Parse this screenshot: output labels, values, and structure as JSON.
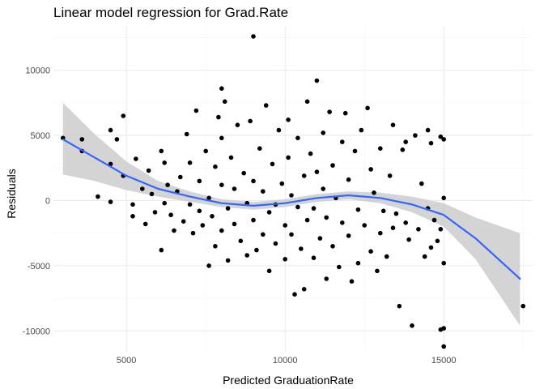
{
  "chart_data": {
    "type": "scatter",
    "title": "Linear model regression for Grad.Rate",
    "xlabel": "Predicted GraduationRate",
    "ylabel": "Residuals",
    "xlim": [
      2700,
      17800
    ],
    "ylim": [
      -11600,
      13400
    ],
    "xticks": [
      5000,
      10000,
      15000
    ],
    "yticks": [
      -10000,
      -5000,
      0,
      5000,
      10000
    ],
    "grid": true,
    "colors": {
      "points": "#000000",
      "smooth_line": "#3366ff",
      "ribbon": "#cccccc",
      "grid_major": "#ebebeb",
      "grid_minor": "#f3f3f3"
    },
    "smooth": {
      "method": "loess",
      "x": [
        3000,
        4000,
        5000,
        6000,
        7000,
        8000,
        9000,
        10000,
        11000,
        12000,
        13000,
        14000,
        15000,
        16000,
        17400
      ],
      "y": [
        4700,
        3300,
        1900,
        900,
        300,
        -200,
        -400,
        -200,
        200,
        400,
        200,
        -300,
        -1100,
        -2900,
        -6000
      ],
      "lower": [
        2000,
        1500,
        800,
        300,
        -100,
        -500,
        -700,
        -500,
        -100,
        100,
        -200,
        -900,
        -2000,
        -4500,
        -9600
      ],
      "upper": [
        7500,
        5100,
        3000,
        1500,
        700,
        100,
        -100,
        100,
        500,
        700,
        600,
        300,
        -200,
        -1300,
        -2500
      ]
    },
    "points": [
      [
        3000,
        4800
      ],
      [
        3600,
        4700
      ],
      [
        3600,
        3800
      ],
      [
        4100,
        300
      ],
      [
        4500,
        5400
      ],
      [
        4500,
        2800
      ],
      [
        4500,
        -100
      ],
      [
        4700,
        4700
      ],
      [
        4900,
        6500
      ],
      [
        4900,
        1900
      ],
      [
        5200,
        -300
      ],
      [
        5200,
        -1200
      ],
      [
        5300,
        3200
      ],
      [
        5500,
        900
      ],
      [
        5600,
        -1800
      ],
      [
        5700,
        2300
      ],
      [
        5800,
        500
      ],
      [
        5900,
        -900
      ],
      [
        6100,
        3800
      ],
      [
        6100,
        -3800
      ],
      [
        6200,
        2900
      ],
      [
        6200,
        -200
      ],
      [
        6300,
        1200
      ],
      [
        6400,
        -1100
      ],
      [
        6500,
        -2300
      ],
      [
        6600,
        700
      ],
      [
        6700,
        1800
      ],
      [
        6800,
        -1600
      ],
      [
        6900,
        5100
      ],
      [
        7000,
        2900
      ],
      [
        7000,
        -300
      ],
      [
        7100,
        -2500
      ],
      [
        7200,
        6900
      ],
      [
        7300,
        1500
      ],
      [
        7300,
        -800
      ],
      [
        7400,
        -1900
      ],
      [
        7500,
        3800
      ],
      [
        7600,
        200
      ],
      [
        7600,
        -5000
      ],
      [
        7700,
        -1200
      ],
      [
        7800,
        2600
      ],
      [
        7800,
        -3500
      ],
      [
        7900,
        6400
      ],
      [
        8000,
        8600
      ],
      [
        8000,
        4800
      ],
      [
        8000,
        1200
      ],
      [
        8000,
        -2300
      ],
      [
        8100,
        7600
      ],
      [
        8200,
        -600
      ],
      [
        8200,
        -4600
      ],
      [
        8300,
        3300
      ],
      [
        8400,
        900
      ],
      [
        8400,
        -1800
      ],
      [
        8500,
        5800
      ],
      [
        8600,
        -3100
      ],
      [
        8700,
        2100
      ],
      [
        8800,
        -200
      ],
      [
        8800,
        -4200
      ],
      [
        8900,
        6100
      ],
      [
        9000,
        1500
      ],
      [
        9000,
        -1500
      ],
      [
        9000,
        12600
      ],
      [
        9100,
        -3800
      ],
      [
        9200,
        4000
      ],
      [
        9300,
        700
      ],
      [
        9300,
        -2600
      ],
      [
        9400,
        7300
      ],
      [
        9500,
        -900
      ],
      [
        9500,
        -5400
      ],
      [
        9600,
        2800
      ],
      [
        9700,
        -300
      ],
      [
        9700,
        -3300
      ],
      [
        9800,
        5400
      ],
      [
        9900,
        1300
      ],
      [
        10000,
        -1900
      ],
      [
        10000,
        -4500
      ],
      [
        10100,
        6200
      ],
      [
        10100,
        3300
      ],
      [
        10200,
        400
      ],
      [
        10200,
        -2600
      ],
      [
        10300,
        -7200
      ],
      [
        10400,
        4800
      ],
      [
        10400,
        -500
      ],
      [
        10500,
        -3700
      ],
      [
        10600,
        1900
      ],
      [
        10600,
        -6800
      ],
      [
        10700,
        7600
      ],
      [
        10700,
        -1500
      ],
      [
        10800,
        3600
      ],
      [
        10900,
        -600
      ],
      [
        10900,
        -4400
      ],
      [
        11000,
        9200
      ],
      [
        11000,
        2200
      ],
      [
        11100,
        -2900
      ],
      [
        11200,
        5200
      ],
      [
        11200,
        900
      ],
      [
        11300,
        -1300
      ],
      [
        11300,
        -6000
      ],
      [
        11400,
        6800
      ],
      [
        11500,
        2700
      ],
      [
        11500,
        -3500
      ],
      [
        11600,
        200
      ],
      [
        11700,
        -5100
      ],
      [
        11800,
        4500
      ],
      [
        11800,
        -1700
      ],
      [
        11900,
        6700
      ],
      [
        12000,
        1600
      ],
      [
        12000,
        -2700
      ],
      [
        12100,
        -6200
      ],
      [
        12200,
        3800
      ],
      [
        12300,
        -700
      ],
      [
        12300,
        -4800
      ],
      [
        12400,
        5400
      ],
      [
        12500,
        -1900
      ],
      [
        12600,
        7100
      ],
      [
        12700,
        2400
      ],
      [
        12700,
        -3900
      ],
      [
        12800,
        600
      ],
      [
        12900,
        -5400
      ],
      [
        13000,
        4000
      ],
      [
        13000,
        -2500
      ],
      [
        13100,
        -800
      ],
      [
        13200,
        -4300
      ],
      [
        13300,
        1900
      ],
      [
        13400,
        5800
      ],
      [
        13400,
        -2100
      ],
      [
        13500,
        -1000
      ],
      [
        13600,
        -8100
      ],
      [
        13700,
        3900
      ],
      [
        13800,
        4500
      ],
      [
        13800,
        -1700
      ],
      [
        13900,
        -3000
      ],
      [
        14000,
        -9600
      ],
      [
        14100,
        5000
      ],
      [
        14200,
        -2200
      ],
      [
        14300,
        1300
      ],
      [
        14400,
        -4300
      ],
      [
        14500,
        5400
      ],
      [
        14500,
        -600
      ],
      [
        14600,
        4400
      ],
      [
        14600,
        -3600
      ],
      [
        14700,
        -1500
      ],
      [
        14800,
        -3100
      ],
      [
        14900,
        4900
      ],
      [
        14900,
        -2200
      ],
      [
        14900,
        -9900
      ],
      [
        15000,
        4700
      ],
      [
        15000,
        200
      ],
      [
        15000,
        -4800
      ],
      [
        15000,
        -9800
      ],
      [
        15000,
        -11200
      ],
      [
        17500,
        -8100
      ]
    ]
  }
}
